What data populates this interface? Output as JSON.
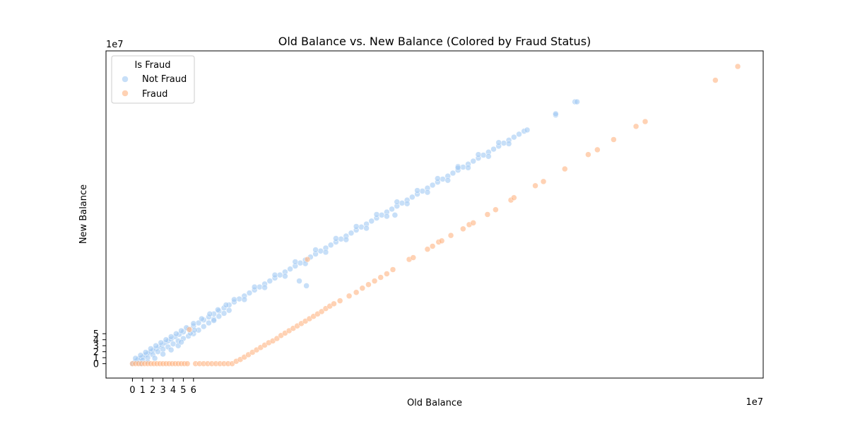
{
  "chart_data": {
    "type": "scatter",
    "title": "Old Balance vs. New Balance (Colored by Fraud Status)",
    "xlabel": "Old Balance",
    "ylabel": "New Balance",
    "x_offset_label": "1e7",
    "y_offset_label": "1e7",
    "xlim": [
      -2.6,
      62.0
    ],
    "ylim": [
      -2.4,
      52.2
    ],
    "xticks": [
      0,
      1,
      2,
      3,
      4,
      5,
      6
    ],
    "xtick_labels": [
      "0",
      "1",
      "2",
      "3",
      "4",
      "5",
      "6"
    ],
    "yticks": [
      0,
      1,
      2,
      3,
      4,
      5
    ],
    "ytick_labels": [
      "0",
      "1",
      "2",
      "3",
      "4",
      "5"
    ],
    "grid": false,
    "legend": {
      "title": "Is Fraud",
      "placement": "top-left",
      "entries": [
        "Not Fraud",
        "Fraud"
      ]
    },
    "series": [
      {
        "name": "Not Fraud",
        "color": "#a1c9f4",
        "opacity": 0.6,
        "units": "1e7",
        "points": [
          [
            0.0,
            0.0
          ],
          [
            0.1,
            0.1
          ],
          [
            0.2,
            0.2
          ],
          [
            0.3,
            0.4
          ],
          [
            0.4,
            0.5
          ],
          [
            0.5,
            0.6
          ],
          [
            0.6,
            0.8
          ],
          [
            0.8,
            0.9
          ],
          [
            1.0,
            1.1
          ],
          [
            1.2,
            1.4
          ],
          [
            1.4,
            1.6
          ],
          [
            1.6,
            1.8
          ],
          [
            1.8,
            2.0
          ],
          [
            2.0,
            2.2
          ],
          [
            2.3,
            2.5
          ],
          [
            2.6,
            2.8
          ],
          [
            2.9,
            3.1
          ],
          [
            3.2,
            3.5
          ],
          [
            3.5,
            3.8
          ],
          [
            3.8,
            4.1
          ],
          [
            4.2,
            4.5
          ],
          [
            4.6,
            4.9
          ],
          [
            5.0,
            5.3
          ],
          [
            5.5,
            5.8
          ],
          [
            6.0,
            6.3
          ],
          [
            6.5,
            6.8
          ],
          [
            7.0,
            7.3
          ],
          [
            7.5,
            7.8
          ],
          [
            8.0,
            8.3
          ],
          [
            8.5,
            8.8
          ],
          [
            9.0,
            9.3
          ],
          [
            9.5,
            9.8
          ],
          [
            10.0,
            10.3
          ],
          [
            10.5,
            10.8
          ],
          [
            11.0,
            11.3
          ],
          [
            11.5,
            11.8
          ],
          [
            12.0,
            12.3
          ],
          [
            12.5,
            12.8
          ],
          [
            13.0,
            13.3
          ],
          [
            13.5,
            13.8
          ],
          [
            14.0,
            14.3
          ],
          [
            14.5,
            14.8
          ],
          [
            15.0,
            15.3
          ],
          [
            15.5,
            15.8
          ],
          [
            16.0,
            16.3
          ],
          [
            16.5,
            16.8
          ],
          [
            17.0,
            17.3
          ],
          [
            17.5,
            17.8
          ],
          [
            18.0,
            18.3
          ],
          [
            18.5,
            18.8
          ],
          [
            19.0,
            19.3
          ],
          [
            19.5,
            19.8
          ],
          [
            20.0,
            20.3
          ],
          [
            20.5,
            20.8
          ],
          [
            21.0,
            21.3
          ],
          [
            21.5,
            21.8
          ],
          [
            22.0,
            22.3
          ],
          [
            22.5,
            22.8
          ],
          [
            23.0,
            23.3
          ],
          [
            23.5,
            23.8
          ],
          [
            24.0,
            24.3
          ],
          [
            24.5,
            24.8
          ],
          [
            25.0,
            25.3
          ],
          [
            25.5,
            25.8
          ],
          [
            26.0,
            26.3
          ],
          [
            26.5,
            26.8
          ],
          [
            27.0,
            27.3
          ],
          [
            27.5,
            27.8
          ],
          [
            28.0,
            28.3
          ],
          [
            28.5,
            28.8
          ],
          [
            29.0,
            29.3
          ],
          [
            29.5,
            29.8
          ],
          [
            30.0,
            30.3
          ],
          [
            30.5,
            30.8
          ],
          [
            31.0,
            31.3
          ],
          [
            31.5,
            31.8
          ],
          [
            32.0,
            32.3
          ],
          [
            32.5,
            32.8
          ],
          [
            33.0,
            33.3
          ],
          [
            33.5,
            33.8
          ],
          [
            34.0,
            34.3
          ],
          [
            34.5,
            34.8
          ],
          [
            35.0,
            35.3
          ],
          [
            35.5,
            35.8
          ],
          [
            36.0,
            36.3
          ],
          [
            36.5,
            36.8
          ],
          [
            37.0,
            37.3
          ],
          [
            37.5,
            37.8
          ],
          [
            38.0,
            38.3
          ],
          [
            38.5,
            38.8
          ],
          [
            38.8,
            39.0
          ],
          [
            0.5,
            0.2
          ],
          [
            1.0,
            0.6
          ],
          [
            1.5,
            1.0
          ],
          [
            2.0,
            1.5
          ],
          [
            2.5,
            2.0
          ],
          [
            3.0,
            2.4
          ],
          [
            3.5,
            2.8
          ],
          [
            4.0,
            3.3
          ],
          [
            4.5,
            3.8
          ],
          [
            5.0,
            4.2
          ],
          [
            5.5,
            4.6
          ],
          [
            6.0,
            5.0
          ],
          [
            6.5,
            5.6
          ],
          [
            7.0,
            6.2
          ],
          [
            7.5,
            6.8
          ],
          [
            8.0,
            7.4
          ],
          [
            8.5,
            7.9
          ],
          [
            9.0,
            8.4
          ],
          [
            9.5,
            8.9
          ],
          [
            11.0,
            10.7
          ],
          [
            13.0,
            12.7
          ],
          [
            15.0,
            14.6
          ],
          [
            17.0,
            16.7
          ],
          [
            19.0,
            18.6
          ],
          [
            21.0,
            20.7
          ],
          [
            23.0,
            22.6
          ],
          [
            25.0,
            24.6
          ],
          [
            27.0,
            26.7
          ],
          [
            29.0,
            28.6
          ],
          [
            31.0,
            30.6
          ],
          [
            33.0,
            32.7
          ],
          [
            35.0,
            34.6
          ],
          [
            37.0,
            36.7
          ],
          [
            0.3,
            0.9
          ],
          [
            0.8,
            1.4
          ],
          [
            1.3,
            1.9
          ],
          [
            1.8,
            2.5
          ],
          [
            2.3,
            3.0
          ],
          [
            2.8,
            3.5
          ],
          [
            3.3,
            4.0
          ],
          [
            3.8,
            4.5
          ],
          [
            4.3,
            5.0
          ],
          [
            4.8,
            5.5
          ],
          [
            5.3,
            6.0
          ],
          [
            6.0,
            6.7
          ],
          [
            6.8,
            7.5
          ],
          [
            7.6,
            8.3
          ],
          [
            8.4,
            9.0
          ],
          [
            9.2,
            9.8
          ],
          [
            10.0,
            10.7
          ],
          [
            12.0,
            12.8
          ],
          [
            14.0,
            14.8
          ],
          [
            16.0,
            17.0
          ],
          [
            18.0,
            19.0
          ],
          [
            20.0,
            20.9
          ],
          [
            22.0,
            22.9
          ],
          [
            24.0,
            24.9
          ],
          [
            26.0,
            27.0
          ],
          [
            28.0,
            28.9
          ],
          [
            30.0,
            30.9
          ],
          [
            32.0,
            32.9
          ],
          [
            34.0,
            34.9
          ],
          [
            36.0,
            36.9
          ],
          [
            0.8,
            0.0
          ],
          [
            1.5,
            0.3
          ],
          [
            2.2,
            0.9
          ],
          [
            3.0,
            1.6
          ],
          [
            3.8,
            2.3
          ],
          [
            4.5,
            3.0
          ],
          [
            4.8,
            3.6
          ],
          [
            5.7,
            5.1
          ],
          [
            6.1,
            5.6
          ],
          [
            8.0,
            7.2
          ],
          [
            16.4,
            13.8
          ],
          [
            17.1,
            13.0
          ],
          [
            25.8,
            24.8
          ],
          [
            32.0,
            32.7
          ],
          [
            41.6,
            41.5
          ],
          [
            41.6,
            41.7
          ],
          [
            43.5,
            43.7
          ],
          [
            43.7,
            43.7
          ]
        ]
      },
      {
        "name": "Fraud",
        "color": "#ffb482",
        "opacity": 0.6,
        "units": "1e7",
        "points": [
          [
            0.0,
            0.0
          ],
          [
            0.3,
            0.0
          ],
          [
            0.6,
            0.0
          ],
          [
            0.9,
            0.0
          ],
          [
            1.2,
            0.0
          ],
          [
            1.5,
            0.0
          ],
          [
            1.8,
            0.0
          ],
          [
            2.1,
            0.0
          ],
          [
            2.4,
            0.0
          ],
          [
            2.7,
            0.0
          ],
          [
            3.0,
            0.0
          ],
          [
            3.3,
            0.0
          ],
          [
            3.6,
            0.0
          ],
          [
            3.9,
            0.0
          ],
          [
            4.2,
            0.0
          ],
          [
            4.5,
            0.0
          ],
          [
            4.8,
            0.0
          ],
          [
            5.1,
            0.0
          ],
          [
            5.4,
            0.0
          ],
          [
            6.2,
            0.0
          ],
          [
            6.6,
            0.0
          ],
          [
            7.0,
            0.0
          ],
          [
            7.4,
            0.0
          ],
          [
            7.8,
            0.0
          ],
          [
            8.2,
            0.0
          ],
          [
            8.6,
            0.0
          ],
          [
            9.0,
            0.0
          ],
          [
            9.4,
            0.0
          ],
          [
            9.8,
            0.0
          ],
          [
            10.2,
            0.4
          ],
          [
            10.6,
            0.7
          ],
          [
            11.0,
            1.1
          ],
          [
            11.4,
            1.5
          ],
          [
            11.8,
            1.9
          ],
          [
            12.2,
            2.3
          ],
          [
            12.6,
            2.7
          ],
          [
            13.0,
            3.1
          ],
          [
            13.4,
            3.5
          ],
          [
            13.8,
            3.8
          ],
          [
            14.2,
            4.2
          ],
          [
            14.6,
            4.7
          ],
          [
            15.0,
            5.1
          ],
          [
            15.4,
            5.5
          ],
          [
            15.8,
            5.9
          ],
          [
            16.2,
            6.3
          ],
          [
            16.6,
            6.7
          ],
          [
            17.0,
            7.1
          ],
          [
            17.4,
            7.5
          ],
          [
            17.8,
            7.9
          ],
          [
            18.2,
            8.3
          ],
          [
            18.6,
            8.7
          ],
          [
            19.0,
            9.2
          ],
          [
            19.4,
            9.6
          ],
          [
            19.8,
            10.0
          ],
          [
            20.4,
            10.5
          ],
          [
            21.3,
            11.3
          ],
          [
            22.0,
            11.9
          ],
          [
            22.6,
            12.6
          ],
          [
            23.2,
            13.2
          ],
          [
            23.8,
            13.8
          ],
          [
            24.4,
            14.4
          ],
          [
            25.0,
            15.0
          ],
          [
            25.6,
            15.7
          ],
          [
            27.2,
            17.4
          ],
          [
            27.6,
            17.7
          ],
          [
            29.0,
            19.1
          ],
          [
            29.5,
            19.6
          ],
          [
            30.1,
            20.3
          ],
          [
            30.4,
            20.5
          ],
          [
            31.3,
            21.4
          ],
          [
            32.5,
            22.5
          ],
          [
            33.1,
            23.2
          ],
          [
            33.5,
            23.5
          ],
          [
            34.9,
            24.9
          ],
          [
            35.7,
            25.7
          ],
          [
            37.2,
            27.3
          ],
          [
            37.5,
            27.7
          ],
          [
            39.6,
            29.7
          ],
          [
            40.4,
            30.4
          ],
          [
            42.5,
            32.5
          ],
          [
            44.8,
            34.9
          ],
          [
            45.7,
            35.7
          ],
          [
            47.3,
            37.4
          ],
          [
            49.5,
            39.6
          ],
          [
            50.4,
            40.4
          ],
          [
            57.3,
            47.3
          ],
          [
            59.5,
            49.6
          ],
          [
            5.6,
            5.7
          ],
          [
            17.2,
            17.4
          ]
        ]
      }
    ]
  }
}
